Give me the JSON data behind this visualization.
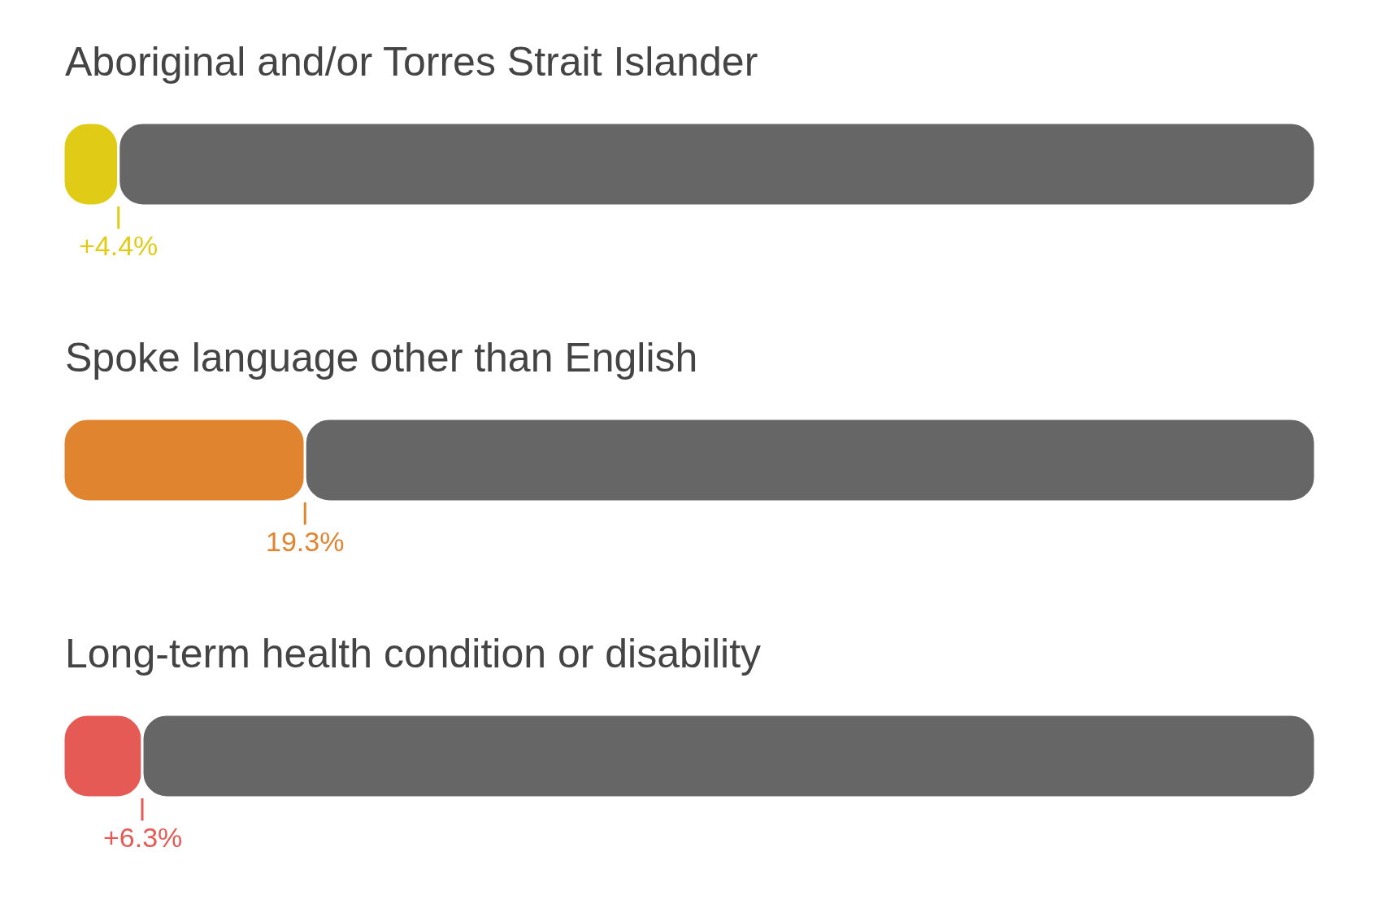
{
  "chart_data": {
    "type": "bar",
    "orientation": "horizontal",
    "stacked": true,
    "tick_labels": false,
    "xlim": [
      0,
      100
    ],
    "categories": [
      "Aboriginal and/or Torres Strait Islander",
      "Spoke language other than English",
      "Long-term health condition or disability"
    ],
    "series": [
      {
        "colors": [
          "#e0cc17",
          "#e08430",
          "#e55a55"
        ],
        "values": [
          4.4,
          19.3,
          6.3
        ],
        "value_labels": [
          "+4.4%",
          "19.3%",
          "+6.3%"
        ]
      },
      {
        "color": "#666666",
        "values": [
          95.6,
          80.7,
          93.7
        ]
      }
    ]
  }
}
